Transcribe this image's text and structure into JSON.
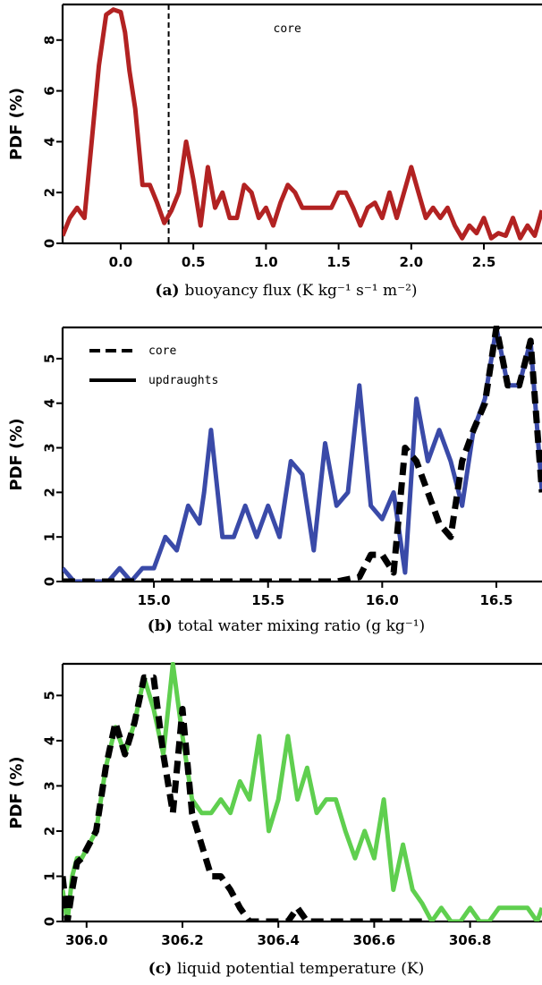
{
  "chart_data": [
    {
      "type": "line",
      "panel": "a",
      "caption_tag": "(a)",
      "caption_text": "buoyancy flux (K kg⁻¹ s⁻¹ m⁻²)",
      "ylabel": "PDF (%)",
      "xlim": [
        -0.4,
        2.9
      ],
      "ylim": [
        0,
        9.4
      ],
      "xticks": [
        0.0,
        0.5,
        1.0,
        1.5,
        2.0,
        2.5
      ],
      "xtick_labels": [
        "0.0",
        "0.5",
        "1.0",
        "1.5",
        "2.0",
        "2.5"
      ],
      "yticks": [
        0,
        2,
        4,
        6,
        8
      ],
      "ytick_labels": [
        "0",
        "2",
        "4",
        "6",
        "8"
      ],
      "annotations": [
        {
          "text": "core",
          "x": 1.05,
          "y": 8.3
        }
      ],
      "vlines": [
        {
          "x": 0.33,
          "style": "dashed"
        }
      ],
      "series": [
        {
          "style": "solid",
          "color": "#b22222",
          "x": [
            -0.4,
            -0.35,
            -0.3,
            -0.25,
            -0.2,
            -0.15,
            -0.1,
            -0.05,
            0.0,
            0.03,
            0.06,
            0.1,
            0.15,
            0.2,
            0.25,
            0.3,
            0.35,
            0.4,
            0.45,
            0.5,
            0.55,
            0.6,
            0.65,
            0.7,
            0.75,
            0.8,
            0.85,
            0.9,
            0.95,
            1.0,
            1.05,
            1.1,
            1.15,
            1.2,
            1.25,
            1.3,
            1.35,
            1.4,
            1.45,
            1.5,
            1.55,
            1.6,
            1.65,
            1.7,
            1.75,
            1.8,
            1.85,
            1.9,
            1.95,
            2.0,
            2.05,
            2.1,
            2.15,
            2.2,
            2.25,
            2.3,
            2.35,
            2.4,
            2.45,
            2.5,
            2.55,
            2.6,
            2.65,
            2.7,
            2.75,
            2.8,
            2.85,
            2.9
          ],
          "values": [
            0.3,
            1.0,
            1.4,
            1.0,
            4.0,
            7.0,
            9.0,
            9.2,
            9.1,
            8.3,
            6.8,
            5.3,
            2.3,
            2.3,
            1.6,
            0.8,
            1.3,
            2.0,
            4.0,
            2.5,
            0.7,
            3.0,
            1.4,
            2.0,
            1.0,
            1.0,
            2.3,
            2.0,
            1.0,
            1.4,
            0.7,
            1.6,
            2.3,
            2.0,
            1.4,
            1.4,
            1.4,
            1.4,
            1.4,
            2.0,
            2.0,
            1.4,
            0.7,
            1.4,
            1.6,
            1.0,
            2.0,
            1.0,
            2.0,
            3.0,
            2.0,
            1.0,
            1.4,
            1.0,
            1.4,
            0.7,
            0.2,
            0.7,
            0.4,
            1.0,
            0.2,
            0.4,
            0.3,
            1.0,
            0.2,
            0.7,
            0.3,
            1.3
          ]
        }
      ]
    },
    {
      "type": "line",
      "panel": "b",
      "caption_tag": "(b)",
      "caption_text": "total water mixing ratio (g kg⁻¹)",
      "ylabel": "PDF (%)",
      "xlim": [
        14.6,
        16.7
      ],
      "ylim": [
        0,
        5.7
      ],
      "xticks": [
        15.0,
        15.5,
        16.0,
        16.5
      ],
      "xtick_labels": [
        "15.0",
        "15.5",
        "16.0",
        "16.5"
      ],
      "yticks": [
        0,
        1,
        2,
        3,
        4,
        5
      ],
      "ytick_labels": [
        "0",
        "1",
        "2",
        "3",
        "4",
        "5"
      ],
      "legend": [
        {
          "label": "core",
          "style": "dashed"
        },
        {
          "label": "updraughts",
          "style": "solid"
        }
      ],
      "series": [
        {
          "name": "updraughts",
          "style": "solid",
          "color": "#3a4aa8",
          "x": [
            14.6,
            14.65,
            14.7,
            14.75,
            14.8,
            14.85,
            14.9,
            14.95,
            15.0,
            15.05,
            15.1,
            15.15,
            15.2,
            15.22,
            15.25,
            15.3,
            15.35,
            15.4,
            15.45,
            15.5,
            15.55,
            15.6,
            15.65,
            15.7,
            15.75,
            15.8,
            15.85,
            15.9,
            15.95,
            16.0,
            16.05,
            16.1,
            16.15,
            16.2,
            16.25,
            16.3,
            16.35,
            16.4,
            16.45,
            16.5,
            16.55,
            16.6,
            16.65,
            16.7
          ],
          "values": [
            0.3,
            0.0,
            0.0,
            0.0,
            0.0,
            0.3,
            0.0,
            0.3,
            0.3,
            1.0,
            0.7,
            1.7,
            1.3,
            2.0,
            3.4,
            1.0,
            1.0,
            1.7,
            1.0,
            1.7,
            1.0,
            2.7,
            2.4,
            0.7,
            3.1,
            1.7,
            2.0,
            4.4,
            1.7,
            1.4,
            2.0,
            0.2,
            4.1,
            2.7,
            3.4,
            2.7,
            1.7,
            3.4,
            4.1,
            5.7,
            4.4,
            4.4,
            5.4,
            2.0
          ]
        },
        {
          "name": "core",
          "style": "dashed",
          "color": "#000000",
          "x": [
            14.6,
            14.7,
            14.8,
            14.9,
            15.0,
            15.1,
            15.2,
            15.3,
            15.4,
            15.5,
            15.6,
            15.7,
            15.8,
            15.9,
            15.95,
            16.0,
            16.05,
            16.1,
            16.15,
            16.2,
            16.25,
            16.3,
            16.35,
            16.4,
            16.45,
            16.5,
            16.55,
            16.6,
            16.65,
            16.7
          ],
          "values": [
            0.0,
            0.0,
            0.0,
            0.0,
            0.0,
            0.0,
            0.0,
            0.0,
            0.0,
            0.0,
            0.0,
            0.0,
            0.0,
            0.1,
            0.6,
            0.6,
            0.2,
            3.0,
            2.7,
            2.0,
            1.3,
            1.0,
            2.7,
            3.4,
            4.0,
            5.7,
            4.4,
            4.4,
            5.4,
            2.0
          ]
        }
      ]
    },
    {
      "type": "line",
      "panel": "c",
      "caption_tag": "(c)",
      "caption_text": "liquid potential temperature (K)",
      "ylabel": "PDF (%)",
      "xlim": [
        305.95,
        306.95
      ],
      "ylim": [
        0,
        5.7
      ],
      "xticks": [
        306.0,
        306.2,
        306.4,
        306.6,
        306.8
      ],
      "xtick_labels": [
        "306.0",
        "306.2",
        "306.4",
        "306.6",
        "306.8"
      ],
      "yticks": [
        0,
        1,
        2,
        3,
        4,
        5
      ],
      "ytick_labels": [
        "0",
        "1",
        "2",
        "3",
        "4",
        "5"
      ],
      "series": [
        {
          "name": "updraughts",
          "style": "solid",
          "color": "#5fcf4f",
          "x": [
            305.95,
            305.96,
            305.97,
            305.98,
            305.99,
            306.0,
            306.02,
            306.04,
            306.06,
            306.08,
            306.1,
            306.12,
            306.14,
            306.16,
            306.18,
            306.2,
            306.22,
            306.24,
            306.26,
            306.28,
            306.3,
            306.32,
            306.34,
            306.36,
            306.38,
            306.4,
            306.42,
            306.44,
            306.46,
            306.48,
            306.5,
            306.52,
            306.54,
            306.56,
            306.58,
            306.6,
            306.62,
            306.64,
            306.66,
            306.68,
            306.7,
            306.72,
            306.74,
            306.76,
            306.78,
            306.8,
            306.82,
            306.84,
            306.86,
            306.88,
            306.9,
            306.92,
            306.94,
            306.95
          ],
          "values": [
            0.7,
            0.0,
            1.0,
            1.4,
            1.4,
            1.6,
            2.0,
            3.4,
            4.3,
            3.7,
            4.4,
            5.4,
            4.7,
            3.7,
            5.7,
            4.1,
            2.7,
            2.4,
            2.4,
            2.7,
            2.4,
            3.1,
            2.7,
            4.1,
            2.0,
            2.7,
            4.1,
            2.7,
            3.4,
            2.4,
            2.7,
            2.7,
            2.0,
            1.4,
            2.0,
            1.4,
            2.7,
            0.7,
            1.7,
            0.7,
            0.4,
            0.0,
            0.3,
            0.0,
            0.0,
            0.3,
            0.0,
            0.0,
            0.3,
            0.3,
            0.3,
            0.3,
            0.0,
            0.3
          ]
        },
        {
          "name": "core",
          "style": "dashed",
          "color": "#000000",
          "x": [
            305.95,
            305.96,
            305.97,
            305.98,
            305.99,
            306.0,
            306.02,
            306.04,
            306.06,
            306.08,
            306.1,
            306.12,
            306.14,
            306.16,
            306.18,
            306.2,
            306.22,
            306.24,
            306.26,
            306.28,
            306.3,
            306.32,
            306.34,
            306.36,
            306.38,
            306.4,
            306.42,
            306.44,
            306.46,
            306.48,
            306.5,
            306.52,
            306.54,
            306.56,
            306.58,
            306.6,
            306.62,
            306.64,
            306.66,
            306.68,
            306.7
          ],
          "values": [
            1.0,
            0.0,
            0.7,
            1.3,
            1.4,
            1.6,
            2.0,
            3.4,
            4.4,
            3.7,
            4.4,
            5.4,
            5.4,
            3.7,
            2.4,
            4.7,
            2.4,
            1.7,
            1.0,
            1.0,
            0.7,
            0.3,
            0.0,
            0.0,
            0.0,
            0.0,
            0.0,
            0.3,
            0.0,
            0.0,
            0.0,
            0.0,
            0.0,
            0.0,
            0.0,
            0.0,
            0.0,
            0.0,
            0.0,
            0.0,
            0.0
          ]
        }
      ]
    }
  ]
}
